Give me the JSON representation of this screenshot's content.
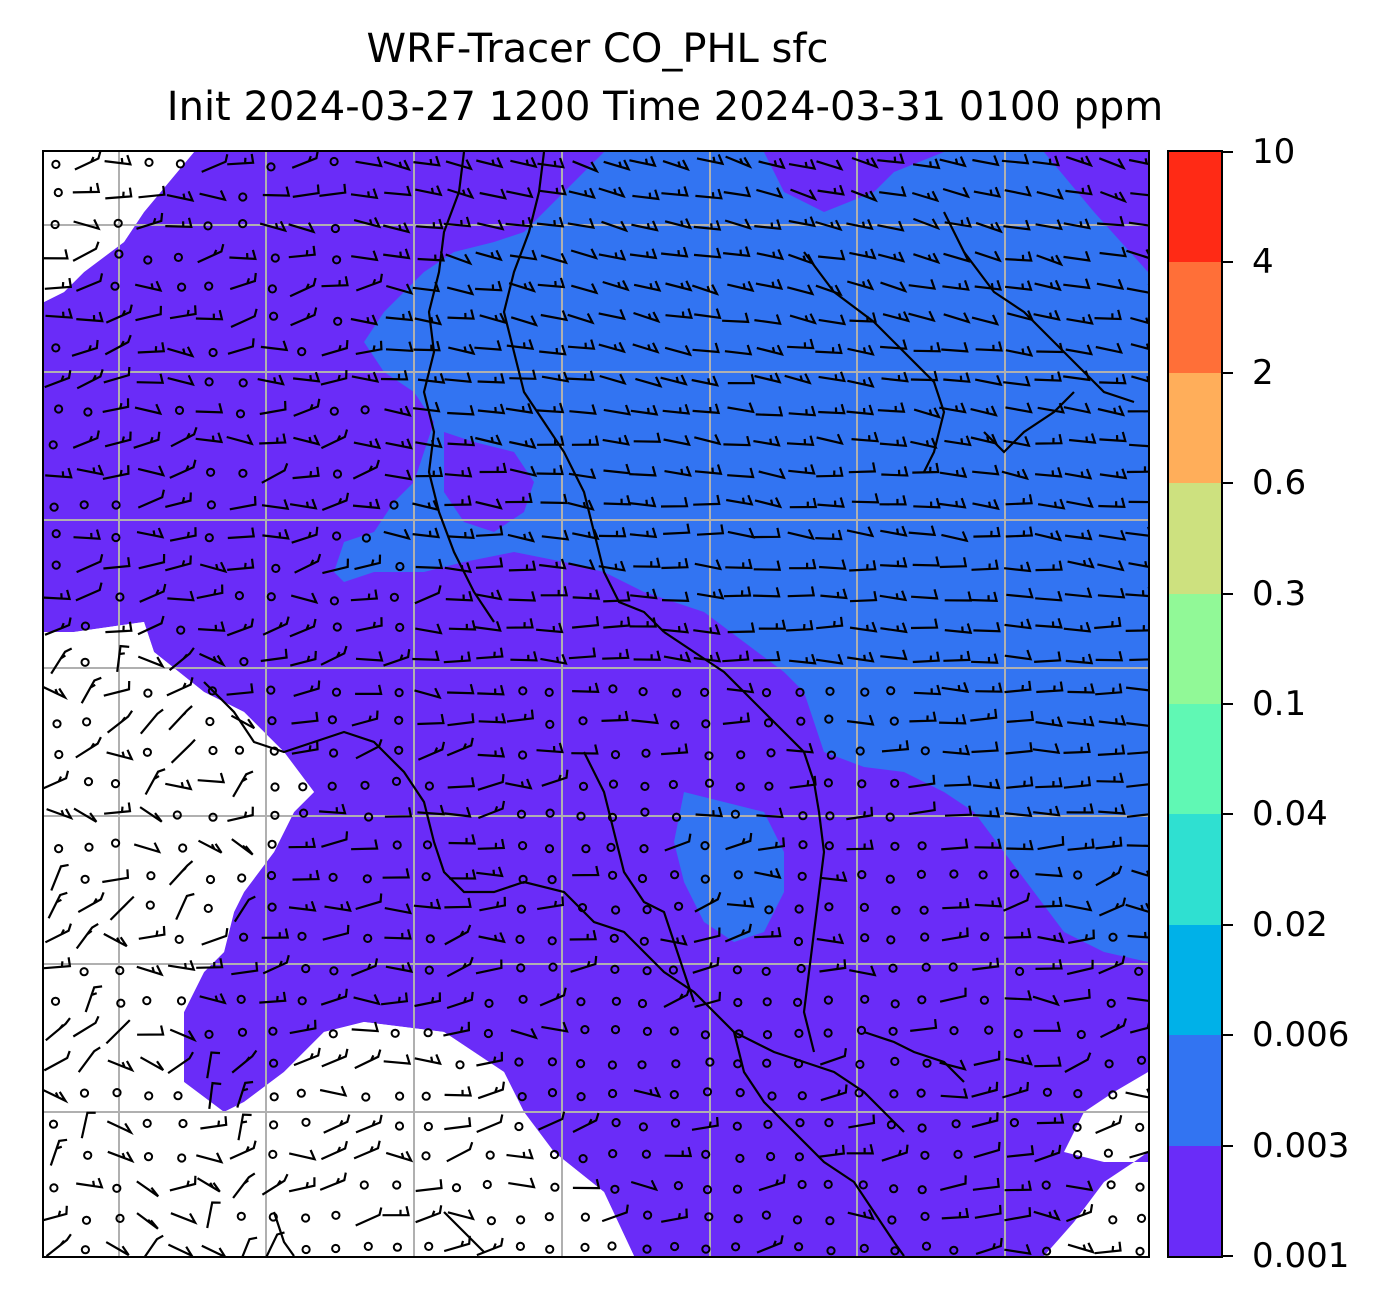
{
  "title": {
    "line1": "WRF-Tracer CO_PHL sfc",
    "line2": "Init 2024-03-27 1200 Time 2024-03-31 0100 ppm"
  },
  "colorbar": {
    "levels": [
      "0.001",
      "0.003",
      "0.006",
      "0.02",
      "0.04",
      "0.1",
      "0.3",
      "0.6",
      "2",
      "4",
      "10"
    ],
    "colors": [
      "#6a2cf8",
      "#3274f2",
      "#00b1e8",
      "#2fe0d1",
      "#60f8b4",
      "#91f997",
      "#cde17f",
      "#ffae5a",
      "#ff6f38",
      "#ff2a15"
    ]
  },
  "map": {
    "colors": {
      "background": "#ffffff",
      "low_band": "#6a2cf8",
      "plume_band": "#3274f2",
      "gridlines": "#b0b0b0",
      "coastlines": "#000000",
      "barbs": "#000000"
    },
    "gridlines": "on",
    "wind_barbs": "on",
    "coastlines": "on"
  }
}
